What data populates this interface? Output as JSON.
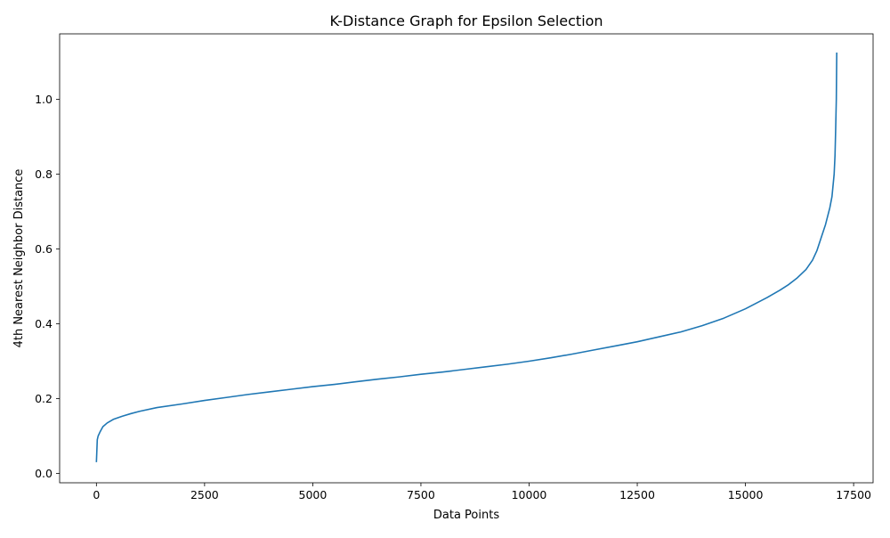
{
  "chart_data": {
    "type": "line",
    "title": "K-Distance Graph for Epsilon Selection",
    "xlabel": "Data Points",
    "ylabel": "4th Nearest Neighbor Distance",
    "xlim": [
      -850,
      17950
    ],
    "ylim": [
      -0.025,
      1.175
    ],
    "x_ticks": [
      0,
      2500,
      5000,
      7500,
      10000,
      12500,
      15000,
      17500
    ],
    "x_tick_labels": [
      "0",
      "2500",
      "5000",
      "7500",
      "10000",
      "12500",
      "15000",
      "17500"
    ],
    "y_ticks": [
      0.0,
      0.2,
      0.4,
      0.6,
      0.8,
      1.0
    ],
    "y_tick_labels": [
      "0.0",
      "0.2",
      "0.4",
      "0.6",
      "0.8",
      "1.0"
    ],
    "grid": false,
    "legend": "none",
    "series": [
      {
        "color": "#1f77b4",
        "x": [
          0,
          10,
          20,
          40,
          80,
          150,
          250,
          400,
          600,
          800,
          1000,
          1400,
          2000,
          2500,
          3000,
          3500,
          4000,
          4500,
          5000,
          5500,
          6000,
          6500,
          7000,
          7500,
          8000,
          8500,
          9000,
          9500,
          10000,
          10500,
          11000,
          11500,
          12000,
          12500,
          13000,
          13500,
          14000,
          14500,
          15000,
          15500,
          15800,
          16000,
          16200,
          16400,
          16550,
          16650,
          16750,
          16850,
          16950,
          17000,
          17050,
          17070,
          17085,
          17100,
          17110
        ],
        "y": [
          0.03,
          0.06,
          0.09,
          0.1,
          0.11,
          0.125,
          0.135,
          0.145,
          0.153,
          0.16,
          0.166,
          0.176,
          0.186,
          0.195,
          0.203,
          0.211,
          0.218,
          0.225,
          0.232,
          0.238,
          0.245,
          0.252,
          0.258,
          0.265,
          0.271,
          0.278,
          0.285,
          0.292,
          0.3,
          0.309,
          0.319,
          0.33,
          0.341,
          0.352,
          0.365,
          0.378,
          0.395,
          0.415,
          0.44,
          0.47,
          0.49,
          0.505,
          0.523,
          0.545,
          0.57,
          0.595,
          0.63,
          0.665,
          0.71,
          0.74,
          0.8,
          0.85,
          0.92,
          1.0,
          1.125
        ]
      }
    ]
  }
}
